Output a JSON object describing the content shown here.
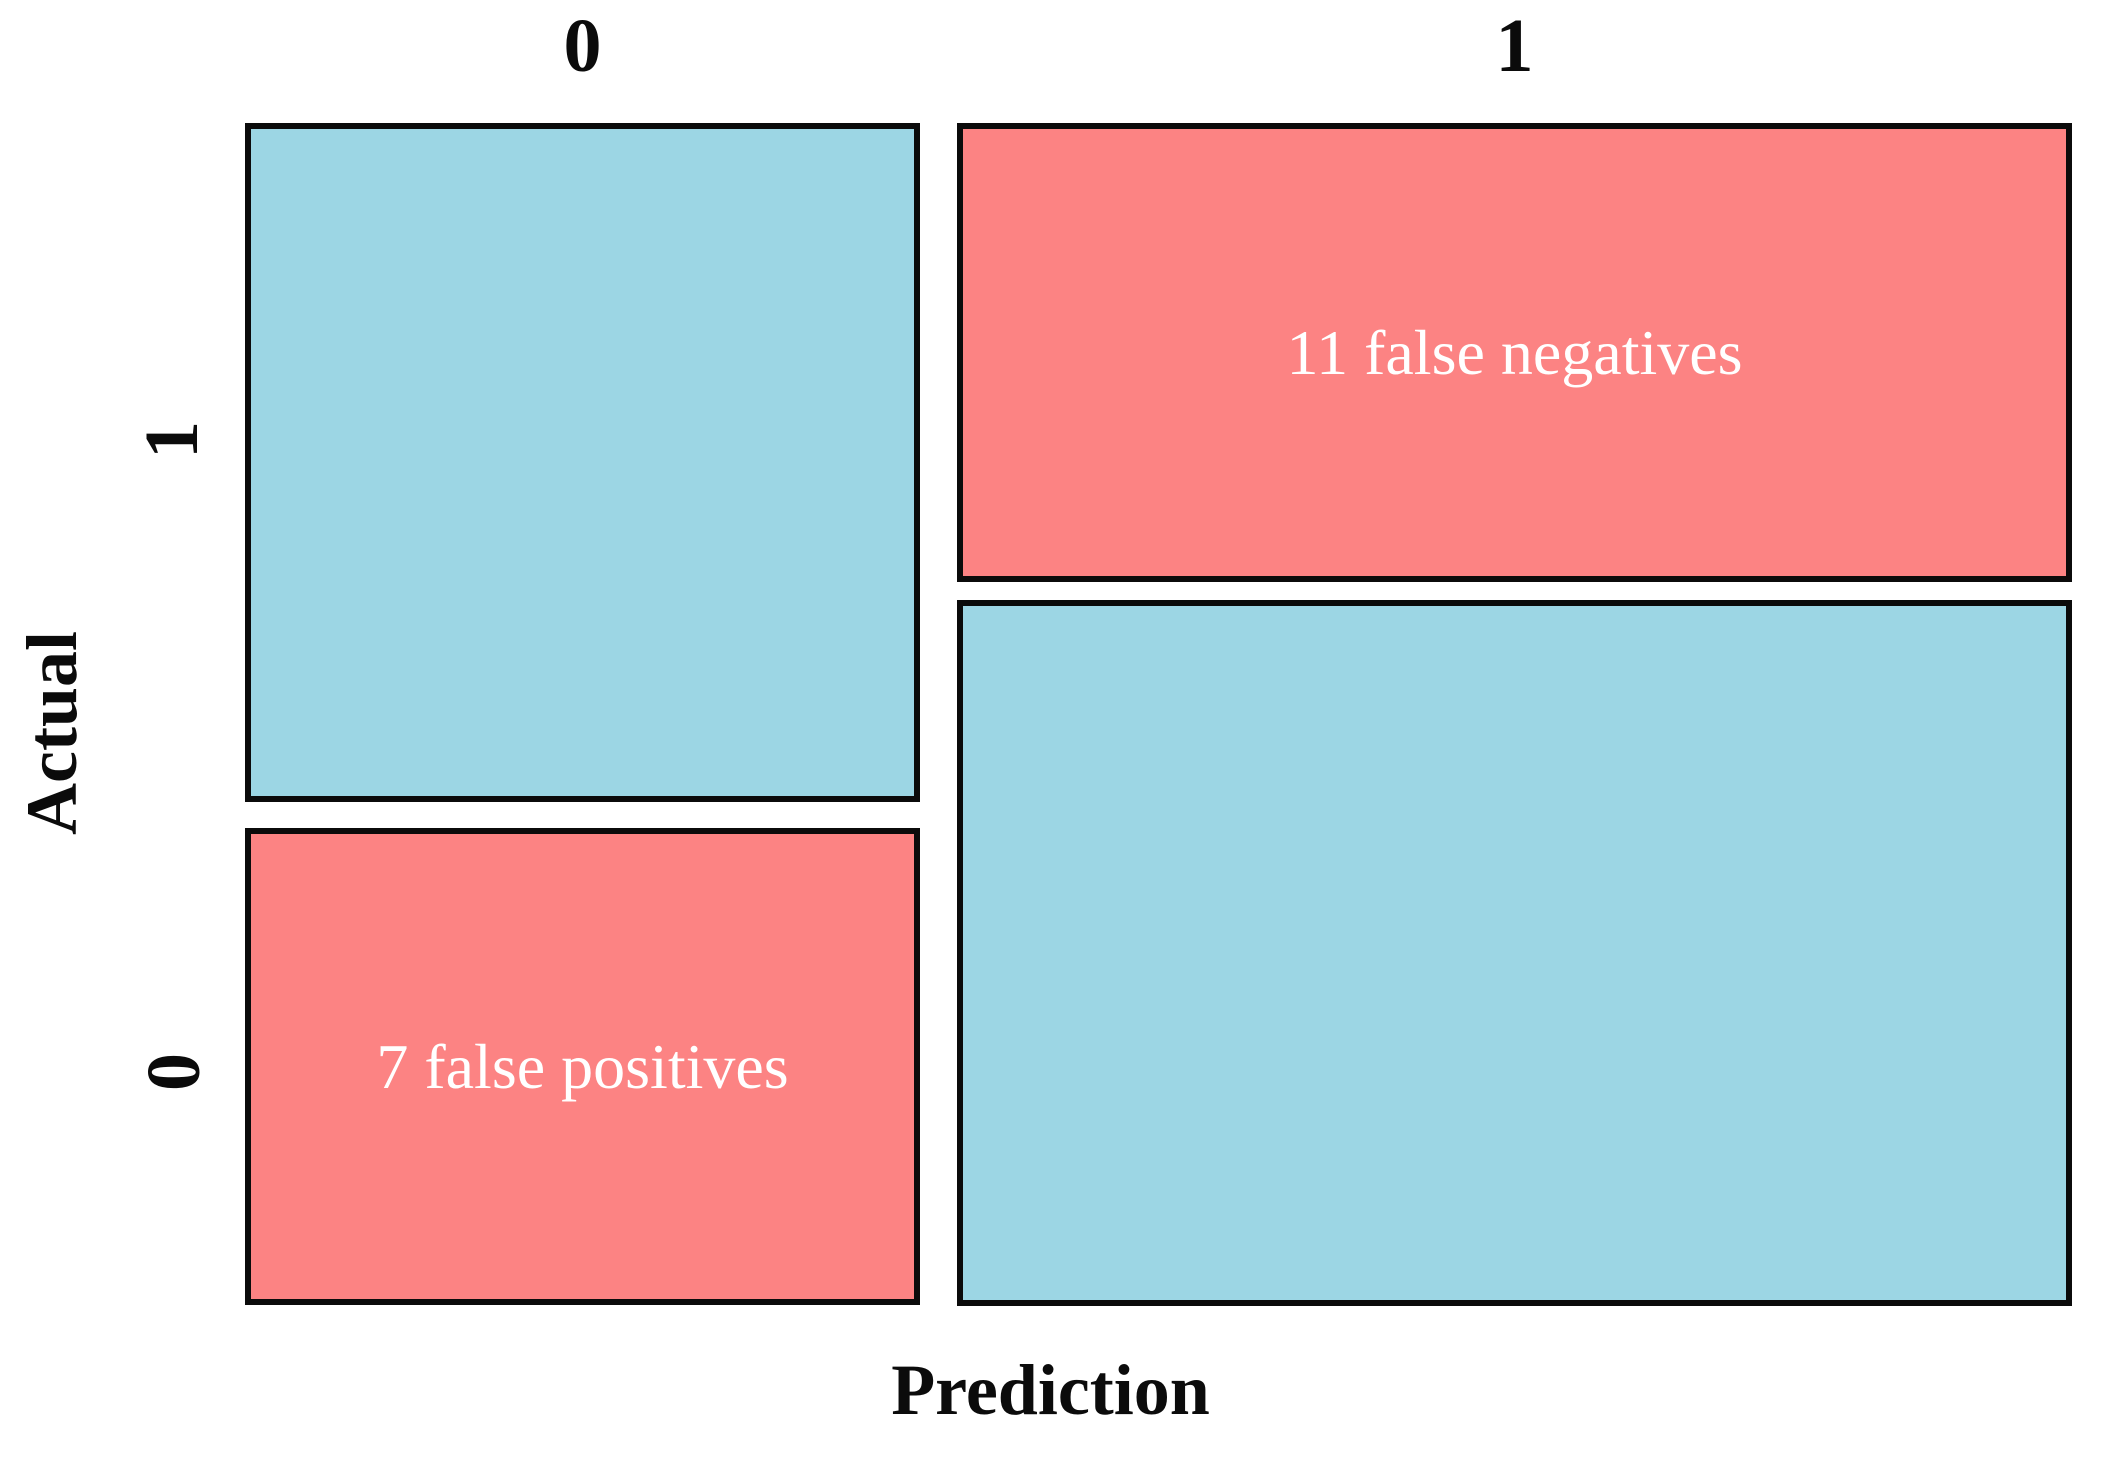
{
  "figure": {
    "description": "Mosaic plot of a binary confusion matrix",
    "background_color": "#ffffff",
    "border_color": "#0b0b0b",
    "cell_label_text_color": "#ffffff",
    "axis_text_color": "#0b0b0b"
  },
  "axes": {
    "x": {
      "label": "Prediction",
      "ticks": [
        "0",
        "1"
      ],
      "ticks_position": "top"
    },
    "y": {
      "label": "Actual",
      "ticks_top_to_bottom": [
        "1",
        "0"
      ],
      "ticks_position": "left"
    }
  },
  "chart_data": {
    "type": "heatmap",
    "subtype": "mosaic-plot-confusion-matrix",
    "title": "",
    "xlabel": "Prediction",
    "ylabel": "Actual",
    "x_categories": [
      "0",
      "1"
    ],
    "y_categories_top_to_bottom": [
      "1",
      "0"
    ],
    "legend": "none",
    "grid": "off",
    "colors": {
      "correct_cell": "#9CD6E4",
      "error_cell": "#FC8383",
      "cell_border": "#0b0b0b",
      "cell_label_text": "#ffffff"
    },
    "column_width_fractions": [
      0.377,
      0.623
    ],
    "cells": [
      {
        "id": "pred0-actual1",
        "prediction": "0",
        "actual": "1",
        "fill": "#9CD6E4",
        "label": "",
        "estimated_count": 10,
        "height_fraction_of_column": 0.59
      },
      {
        "id": "pred0-actual0",
        "prediction": "0",
        "actual": "0",
        "fill": "#FC8383",
        "label": "7 false positives",
        "count": 7,
        "height_fraction_of_column": 0.41
      },
      {
        "id": "pred1-actual1",
        "prediction": "1",
        "actual": "1",
        "fill": "#FC8383",
        "label": "11 false negatives",
        "count": 11,
        "height_fraction_of_column": 0.39
      },
      {
        "id": "pred1-actual0",
        "prediction": "1",
        "actual": "0",
        "fill": "#9CD6E4",
        "label": "",
        "estimated_count": 17,
        "height_fraction_of_column": 0.61
      }
    ],
    "annotations": [
      "11 false negatives",
      "7 false positives"
    ]
  }
}
